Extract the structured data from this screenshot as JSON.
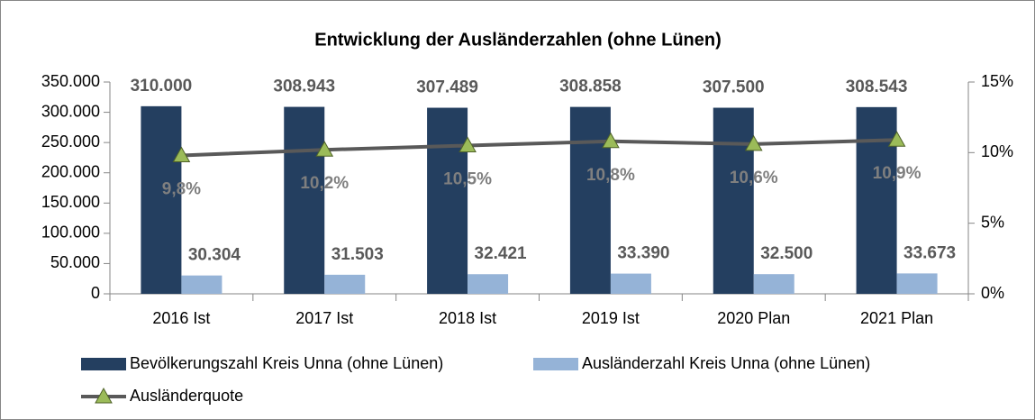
{
  "chart_data": {
    "type": "bar",
    "title": "Entwicklung der Ausländerzahlen (ohne Lünen)",
    "categories": [
      "2016 Ist",
      "2017 Ist",
      "2018 Ist",
      "2019 Ist",
      "2020 Plan",
      "2021 Plan"
    ],
    "series": [
      {
        "name": "Bevölkerungszahl Kreis Unna (ohne Lünen)",
        "color": "#243f60",
        "type": "bar",
        "values": [
          310000,
          308943,
          307489,
          308858,
          307500,
          308543
        ],
        "value_labels": [
          "310.000",
          "308.943",
          "307.489",
          "308.858",
          "307.500",
          "308.543"
        ]
      },
      {
        "name": "Ausländerzahl Kreis Unna (ohne Lünen)",
        "color": "#95b3d7",
        "type": "bar",
        "values": [
          30304,
          31503,
          32421,
          33390,
          32500,
          33673
        ],
        "value_labels": [
          "30.304",
          "31.503",
          "32.421",
          "33.390",
          "32.500",
          "33.673"
        ]
      },
      {
        "name": "Ausländerquote",
        "color": "#595959",
        "marker_color": "#9bbb59",
        "type": "line",
        "axis": "y2",
        "values": [
          9.8,
          10.2,
          10.5,
          10.8,
          10.6,
          10.9
        ],
        "value_labels": [
          "9,8%",
          "10,2%",
          "10,5%",
          "10,8%",
          "10,6%",
          "10,9%"
        ]
      }
    ],
    "ylim": [
      0,
      350000
    ],
    "yticks": [
      0,
      {
        "value": 50000,
        "label": "50.000"
      },
      {
        "value": 100000,
        "label": "100.000"
      },
      {
        "value": 150000,
        "label": "150.000"
      },
      {
        "value": 200000,
        "label": "200.000"
      },
      {
        "value": 250000,
        "label": "250.000"
      },
      {
        "value": 300000,
        "label": "300.000"
      },
      {
        "value": 350000,
        "label": "350.000"
      }
    ],
    "y2lim": [
      0,
      15
    ],
    "y2ticks": [
      {
        "value": 0,
        "label": "0%"
      },
      {
        "value": 5,
        "label": "5%"
      },
      {
        "value": 10,
        "label": "10%"
      },
      {
        "value": 15,
        "label": "15%"
      }
    ],
    "legend": "bottom"
  }
}
